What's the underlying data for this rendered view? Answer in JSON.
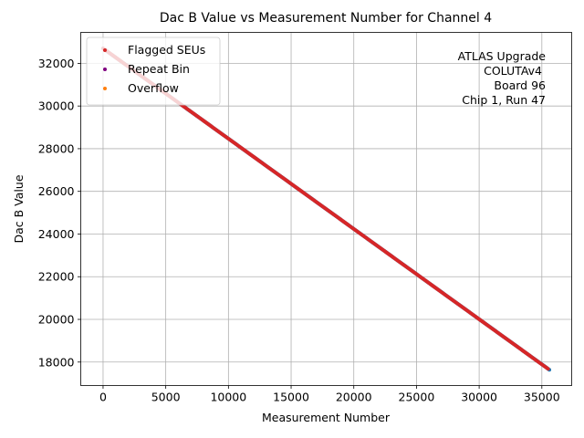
{
  "chart_data": {
    "type": "scatter",
    "title": "Dac B Value vs Measurement Number for Channel 4",
    "xlabel": "Measurement Number",
    "ylabel": "Dac B Value",
    "xlim": [
      -1780,
      37380
    ],
    "ylim": [
      16900,
      33450
    ],
    "xticks": [
      0,
      5000,
      10000,
      15000,
      20000,
      25000,
      30000,
      35000
    ],
    "yticks": [
      18000,
      20000,
      22000,
      24000,
      26000,
      28000,
      30000,
      32000
    ],
    "grid": true,
    "legend_placement": "upper left",
    "series": [
      {
        "name": "Flagged SEUs",
        "color": "#d62728",
        "marker": "circle"
      },
      {
        "name": "Repeat Bin",
        "color": "#800080",
        "marker": "circle"
      },
      {
        "name": "Overflow",
        "color": "#ff7f0e",
        "marker": "circle"
      }
    ],
    "base_series": {
      "color": "#1f77b4",
      "x": [
        0,
        35600
      ],
      "y": [
        32700,
        17640
      ]
    },
    "flagged_line": {
      "color": "#d62728",
      "x": [
        0,
        35500
      ],
      "y": [
        32700,
        17680
      ]
    },
    "annotation_lines": [
      "ATLAS Upgrade",
      "COLUTAv4",
      "Board 96",
      "Chip 1, Run 47"
    ]
  }
}
